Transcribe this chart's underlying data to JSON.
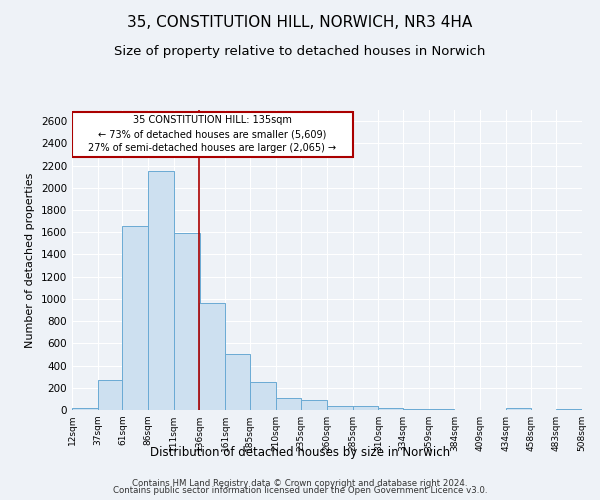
{
  "title1": "35, CONSTITUTION HILL, NORWICH, NR3 4HA",
  "title2": "Size of property relative to detached houses in Norwich",
  "xlabel": "Distribution of detached houses by size in Norwich",
  "ylabel": "Number of detached properties",
  "bar_color": "#cde0f0",
  "bar_edge_color": "#6aaad4",
  "vline_color": "#aa0000",
  "vline_x": 136,
  "annotation_line1": "35 CONSTITUTION HILL: 135sqm",
  "annotation_line2": "← 73% of detached houses are smaller (5,609)",
  "annotation_line3": "27% of semi-detached houses are larger (2,065) →",
  "annotation_box_color": "#ffffff",
  "annotation_box_edge": "#aa0000",
  "bins": [
    12,
    37,
    61,
    86,
    111,
    136,
    161,
    185,
    210,
    235,
    260,
    285,
    310,
    334,
    359,
    384,
    409,
    434,
    458,
    483,
    508
  ],
  "values": [
    20,
    270,
    1660,
    2150,
    1590,
    960,
    500,
    250,
    110,
    90,
    35,
    35,
    20,
    10,
    5,
    3,
    2,
    15,
    2,
    8,
    0
  ],
  "ylim": [
    0,
    2700
  ],
  "yticks": [
    0,
    200,
    400,
    600,
    800,
    1000,
    1200,
    1400,
    1600,
    1800,
    2000,
    2200,
    2400,
    2600
  ],
  "tick_labels": [
    "12sqm",
    "37sqm",
    "61sqm",
    "86sqm",
    "111sqm",
    "136sqm",
    "161sqm",
    "185sqm",
    "210sqm",
    "235sqm",
    "260sqm",
    "285sqm",
    "310sqm",
    "334sqm",
    "359sqm",
    "384sqm",
    "409sqm",
    "434sqm",
    "458sqm",
    "483sqm",
    "508sqm"
  ],
  "footer1": "Contains HM Land Registry data © Crown copyright and database right 2024.",
  "footer2": "Contains public sector information licensed under the Open Government Licence v3.0.",
  "background_color": "#eef2f7",
  "grid_color": "#ffffff",
  "title_fontsize": 11,
  "subtitle_fontsize": 9.5
}
